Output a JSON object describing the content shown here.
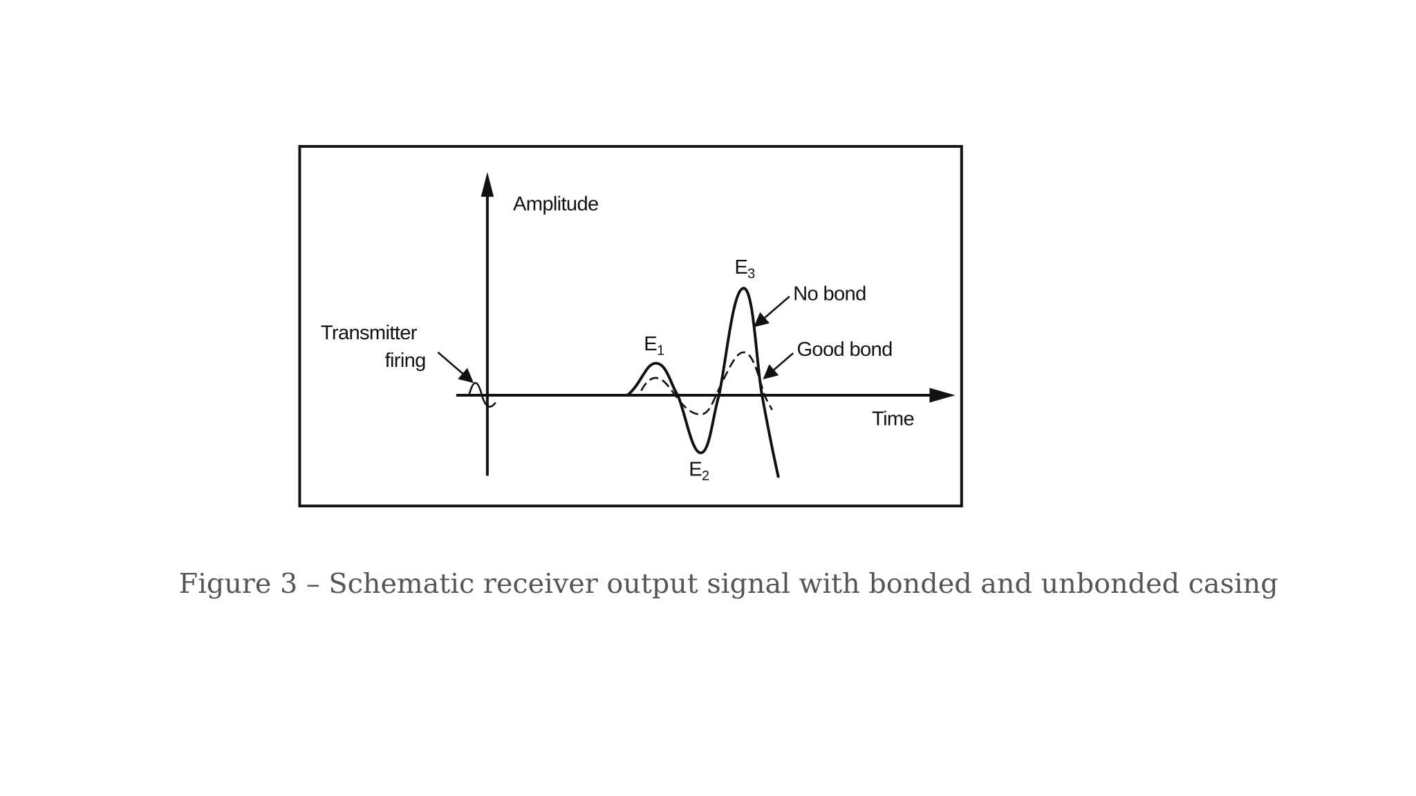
{
  "figure": {
    "axis_y_label": "Amplitude",
    "axis_x_label": "Time",
    "transmitter_label_line1": "Transmitter",
    "transmitter_label_line2": "firing",
    "peaks": [
      {
        "letter": "E",
        "sub": "1"
      },
      {
        "letter": "E",
        "sub": "2"
      },
      {
        "letter": "E",
        "sub": "3"
      }
    ],
    "curves": [
      {
        "name": "No bond",
        "style": "solid"
      },
      {
        "name": "Good bond",
        "style": "dashed"
      }
    ]
  },
  "caption": "Figure 3 – Schematic receiver output signal with bonded and unbonded casing"
}
